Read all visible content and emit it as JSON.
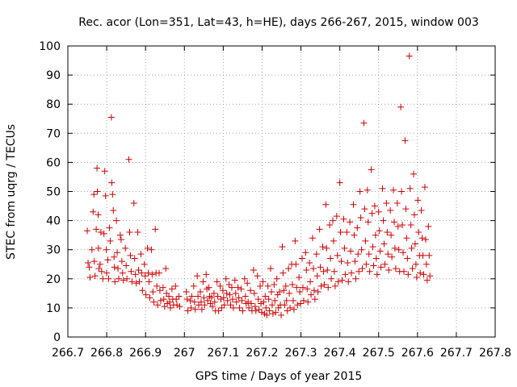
{
  "chart_data": {
    "type": "scatter",
    "title": "Rec. acor (Lon=351, Lat=43, h=HE), days 266-267, 2015, window 003",
    "xlabel": "GPS time / Days of year 2015",
    "ylabel": "STEC from uqrg / TECUs",
    "xlim": [
      266.7,
      267.8
    ],
    "ylim": [
      0,
      100
    ],
    "xticks": [
      266.7,
      266.8,
      266.9,
      267.0,
      267.1,
      267.2,
      267.3,
      267.4,
      267.5,
      267.6,
      267.7,
      267.8
    ],
    "xtick_labels": [
      "266.7",
      "266.8",
      "266.9",
      "267",
      "267.1",
      "267.2",
      "267.3",
      "267.4",
      "267.5",
      "267.6",
      "267.7",
      "267.8"
    ],
    "yticks": [
      0,
      10,
      20,
      30,
      40,
      50,
      60,
      70,
      80,
      90,
      100
    ],
    "ytick_labels": [
      "0",
      "10",
      "20",
      "30",
      "40",
      "50",
      "60",
      "70",
      "80",
      "90",
      "100"
    ],
    "grid": true,
    "marker": "+",
    "color": "#cc0000",
    "points": [
      [
        266.75,
        36.5
      ],
      [
        266.752,
        25.5
      ],
      [
        266.755,
        24.0
      ],
      [
        266.757,
        20.5
      ],
      [
        266.762,
        30.0
      ],
      [
        266.765,
        43.0
      ],
      [
        266.767,
        49.0
      ],
      [
        266.768,
        26.0
      ],
      [
        266.77,
        21.0
      ],
      [
        266.773,
        37.0
      ],
      [
        266.775,
        58.0
      ],
      [
        266.776,
        50.0
      ],
      [
        266.778,
        42.0
      ],
      [
        266.779,
        30.5
      ],
      [
        266.78,
        23.5
      ],
      [
        266.783,
        25.0
      ],
      [
        266.785,
        36.0
      ],
      [
        266.787,
        22.5
      ],
      [
        266.79,
        20.0
      ],
      [
        266.793,
        35.5
      ],
      [
        266.795,
        57.0
      ],
      [
        266.797,
        48.5
      ],
      [
        266.799,
        30.0
      ],
      [
        266.8,
        22.0
      ],
      [
        266.803,
        26.5
      ],
      [
        266.805,
        20.0
      ],
      [
        266.807,
        37.5
      ],
      [
        266.809,
        33.0
      ],
      [
        266.812,
        75.5
      ],
      [
        266.813,
        53.0
      ],
      [
        266.815,
        49.0
      ],
      [
        266.817,
        43.5
      ],
      [
        266.819,
        27.5
      ],
      [
        266.82,
        24.0
      ],
      [
        266.821,
        19.0
      ],
      [
        266.825,
        40.0
      ],
      [
        266.827,
        29.0
      ],
      [
        266.829,
        23.5
      ],
      [
        266.831,
        20.0
      ],
      [
        266.835,
        35.0
      ],
      [
        266.837,
        33.5
      ],
      [
        266.839,
        26.0
      ],
      [
        266.841,
        22.0
      ],
      [
        266.843,
        19.5
      ],
      [
        266.848,
        30.5
      ],
      [
        266.85,
        24.5
      ],
      [
        266.852,
        20.0
      ],
      [
        266.857,
        61.0
      ],
      [
        266.859,
        36.0
      ],
      [
        266.861,
        28.0
      ],
      [
        266.863,
        22.5
      ],
      [
        266.865,
        19.0
      ],
      [
        266.87,
        46.0
      ],
      [
        266.872,
        27.0
      ],
      [
        266.874,
        21.5
      ],
      [
        266.876,
        18.5
      ],
      [
        266.88,
        36.0
      ],
      [
        266.882,
        23.0
      ],
      [
        266.884,
        19.0
      ],
      [
        266.888,
        28.5
      ],
      [
        266.89,
        22.0
      ],
      [
        266.892,
        16.0
      ],
      [
        266.897,
        25.0
      ],
      [
        266.899,
        21.0
      ],
      [
        266.901,
        14.5
      ],
      [
        266.905,
        30.5
      ],
      [
        266.907,
        22.0
      ],
      [
        266.909,
        19.0
      ],
      [
        266.911,
        13.5
      ],
      [
        266.915,
        30.0
      ],
      [
        266.917,
        21.5
      ],
      [
        266.919,
        15.5
      ],
      [
        266.921,
        12.0
      ],
      [
        266.925,
        37.0
      ],
      [
        266.927,
        22.0
      ],
      [
        266.929,
        17.5
      ],
      [
        266.931,
        11.0
      ],
      [
        266.935,
        22.0
      ],
      [
        266.937,
        16.0
      ],
      [
        266.939,
        12.5
      ],
      [
        266.945,
        17.0
      ],
      [
        266.947,
        13.0
      ],
      [
        266.949,
        10.5
      ],
      [
        266.952,
        23.5
      ],
      [
        266.954,
        15.0
      ],
      [
        266.956,
        11.5
      ],
      [
        266.96,
        14.0
      ],
      [
        266.962,
        12.0
      ],
      [
        266.964,
        10.0
      ],
      [
        266.968,
        16.5
      ],
      [
        266.97,
        13.0
      ],
      [
        266.972,
        11.0
      ],
      [
        266.977,
        17.5
      ],
      [
        266.979,
        13.0
      ],
      [
        266.981,
        11.0
      ],
      [
        266.986,
        14.0
      ],
      [
        266.988,
        10.5
      ],
      [
        267.005,
        15.5
      ],
      [
        267.007,
        13.0
      ],
      [
        267.009,
        9.0
      ],
      [
        267.015,
        12.5
      ],
      [
        267.017,
        10.0
      ],
      [
        267.019,
        14.0
      ],
      [
        267.024,
        17.5
      ],
      [
        267.026,
        12.0
      ],
      [
        267.028,
        9.5
      ],
      [
        267.033,
        21.0
      ],
      [
        267.035,
        14.0
      ],
      [
        267.037,
        11.0
      ],
      [
        267.041,
        15.5
      ],
      [
        267.043,
        12.0
      ],
      [
        267.045,
        9.5
      ],
      [
        267.048,
        19.0
      ],
      [
        267.05,
        13.5
      ],
      [
        267.052,
        11.0
      ],
      [
        267.056,
        21.5
      ],
      [
        267.058,
        16.5
      ],
      [
        267.06,
        12.5
      ],
      [
        267.063,
        17.0
      ],
      [
        267.065,
        14.0
      ],
      [
        267.067,
        11.5
      ],
      [
        267.07,
        13.5
      ],
      [
        267.072,
        10.5
      ],
      [
        267.076,
        15.0
      ],
      [
        267.078,
        12.0
      ],
      [
        267.08,
        9.0
      ],
      [
        267.084,
        19.0
      ],
      [
        267.086,
        14.0
      ],
      [
        267.088,
        9.0
      ],
      [
        267.092,
        17.5
      ],
      [
        267.094,
        13.0
      ],
      [
        267.096,
        10.0
      ],
      [
        267.099,
        16.0
      ],
      [
        267.101,
        13.5
      ],
      [
        267.103,
        11.0
      ],
      [
        267.107,
        20.0
      ],
      [
        267.109,
        15.0
      ],
      [
        267.111,
        12.5
      ],
      [
        267.115,
        18.0
      ],
      [
        267.117,
        14.5
      ],
      [
        267.119,
        11.0
      ],
      [
        267.122,
        17.0
      ],
      [
        267.124,
        13.0
      ],
      [
        267.126,
        10.0
      ],
      [
        267.13,
        19.5
      ],
      [
        267.132,
        15.0
      ],
      [
        267.134,
        12.0
      ],
      [
        267.138,
        17.0
      ],
      [
        267.14,
        13.5
      ],
      [
        267.142,
        10.0
      ],
      [
        267.146,
        16.5
      ],
      [
        267.148,
        12.5
      ],
      [
        267.15,
        9.0
      ],
      [
        267.155,
        20.0
      ],
      [
        267.157,
        14.0
      ],
      [
        267.159,
        11.5
      ],
      [
        267.162,
        18.5
      ],
      [
        267.164,
        12.0
      ],
      [
        267.166,
        10.0
      ],
      [
        267.17,
        16.0
      ],
      [
        267.172,
        11.5
      ],
      [
        267.174,
        9.0
      ],
      [
        267.178,
        23.0
      ],
      [
        267.18,
        15.0
      ],
      [
        267.182,
        10.5
      ],
      [
        267.184,
        9.0
      ],
      [
        267.188,
        21.0
      ],
      [
        267.19,
        13.0
      ],
      [
        267.192,
        9.5
      ],
      [
        267.195,
        17.5
      ],
      [
        267.197,
        11.5
      ],
      [
        267.199,
        8.5
      ],
      [
        267.202,
        19.0
      ],
      [
        267.204,
        12.0
      ],
      [
        267.206,
        8.0
      ],
      [
        267.208,
        14.0
      ],
      [
        267.21,
        10.0
      ],
      [
        267.212,
        7.5
      ],
      [
        267.215,
        17.5
      ],
      [
        267.217,
        13.0
      ],
      [
        267.219,
        9.0
      ],
      [
        267.222,
        23.5
      ],
      [
        267.224,
        15.5
      ],
      [
        267.226,
        11.0
      ],
      [
        267.228,
        8.0
      ],
      [
        267.231,
        18.0
      ],
      [
        267.233,
        12.5
      ],
      [
        267.235,
        8.5
      ],
      [
        267.238,
        20.0
      ],
      [
        267.24,
        14.5
      ],
      [
        267.242,
        10.0
      ],
      [
        267.245,
        15.5
      ],
      [
        267.247,
        11.0
      ],
      [
        267.249,
        7.5
      ],
      [
        267.252,
        31.0
      ],
      [
        267.254,
        22.0
      ],
      [
        267.256,
        16.0
      ],
      [
        267.258,
        11.0
      ],
      [
        267.261,
        17.5
      ],
      [
        267.263,
        12.5
      ],
      [
        267.265,
        9.0
      ],
      [
        267.268,
        23.5
      ],
      [
        267.27,
        15.0
      ],
      [
        267.272,
        10.0
      ],
      [
        267.276,
        25.0
      ],
      [
        267.278,
        18.0
      ],
      [
        267.28,
        12.5
      ],
      [
        267.282,
        9.5
      ],
      [
        267.285,
        33.0
      ],
      [
        267.287,
        25.0
      ],
      [
        267.289,
        17.0
      ],
      [
        267.291,
        11.0
      ],
      [
        267.295,
        20.5
      ],
      [
        267.297,
        15.5
      ],
      [
        267.299,
        11.5
      ],
      [
        267.303,
        27.0
      ],
      [
        267.305,
        17.0
      ],
      [
        267.307,
        12.5
      ],
      [
        267.312,
        29.0
      ],
      [
        267.314,
        23.0
      ],
      [
        267.316,
        16.5
      ],
      [
        267.318,
        12.0
      ],
      [
        267.322,
        25.5
      ],
      [
        267.324,
        19.0
      ],
      [
        267.326,
        14.5
      ],
      [
        267.33,
        34.0
      ],
      [
        267.332,
        23.5
      ],
      [
        267.334,
        16.0
      ],
      [
        267.336,
        13.0
      ],
      [
        267.34,
        28.5
      ],
      [
        267.342,
        21.0
      ],
      [
        267.344,
        15.5
      ],
      [
        267.348,
        37.0
      ],
      [
        267.35,
        24.0
      ],
      [
        267.352,
        17.5
      ],
      [
        267.356,
        31.0
      ],
      [
        267.358,
        22.5
      ],
      [
        267.36,
        18.0
      ],
      [
        267.364,
        45.5
      ],
      [
        267.366,
        30.5
      ],
      [
        267.368,
        23.0
      ],
      [
        267.37,
        17.0
      ],
      [
        267.374,
        38.5
      ],
      [
        267.376,
        27.0
      ],
      [
        267.378,
        20.0
      ],
      [
        267.382,
        40.0
      ],
      [
        267.384,
        33.0
      ],
      [
        267.386,
        22.5
      ],
      [
        267.388,
        17.5
      ],
      [
        267.392,
        41.5
      ],
      [
        267.394,
        28.0
      ],
      [
        267.396,
        19.0
      ],
      [
        267.4,
        53.0
      ],
      [
        267.402,
        36.0
      ],
      [
        267.404,
        26.0
      ],
      [
        267.406,
        19.5
      ],
      [
        267.41,
        40.5
      ],
      [
        267.412,
        30.5
      ],
      [
        267.414,
        21.5
      ],
      [
        267.418,
        36.0
      ],
      [
        267.42,
        25.5
      ],
      [
        267.422,
        19.0
      ],
      [
        267.426,
        39.5
      ],
      [
        267.428,
        29.5
      ],
      [
        267.43,
        22.0
      ],
      [
        267.435,
        45.5
      ],
      [
        267.437,
        35.0
      ],
      [
        267.439,
        26.0
      ],
      [
        267.441,
        20.0
      ],
      [
        267.445,
        37.5
      ],
      [
        267.447,
        28.5
      ],
      [
        267.449,
        22.5
      ],
      [
        267.452,
        50.0
      ],
      [
        267.454,
        41.0
      ],
      [
        267.456,
        30.0
      ],
      [
        267.458,
        23.5
      ],
      [
        267.462,
        73.5
      ],
      [
        267.464,
        44.0
      ],
      [
        267.466,
        33.0
      ],
      [
        267.468,
        25.0
      ],
      [
        267.471,
        50.5
      ],
      [
        267.473,
        39.5
      ],
      [
        267.475,
        28.5
      ],
      [
        267.477,
        22.5
      ],
      [
        267.481,
        57.5
      ],
      [
        267.483,
        42.5
      ],
      [
        267.485,
        31.0
      ],
      [
        267.487,
        24.5
      ],
      [
        267.49,
        45.0
      ],
      [
        267.492,
        35.0
      ],
      [
        267.494,
        27.0
      ],
      [
        267.496,
        21.5
      ],
      [
        267.5,
        43.0
      ],
      [
        267.502,
        36.5
      ],
      [
        267.504,
        29.5
      ],
      [
        267.506,
        24.0
      ],
      [
        267.51,
        51.0
      ],
      [
        267.512,
        40.0
      ],
      [
        267.514,
        32.0
      ],
      [
        267.516,
        25.0
      ],
      [
        267.52,
        46.0
      ],
      [
        267.522,
        36.0
      ],
      [
        267.524,
        28.5
      ],
      [
        267.526,
        23.0
      ],
      [
        267.53,
        43.5
      ],
      [
        267.532,
        35.0
      ],
      [
        267.534,
        27.5
      ],
      [
        267.538,
        50.5
      ],
      [
        267.54,
        39.5
      ],
      [
        267.542,
        30.5
      ],
      [
        267.544,
        23.5
      ],
      [
        267.548,
        46.0
      ],
      [
        267.55,
        38.0
      ],
      [
        267.552,
        30.0
      ],
      [
        267.554,
        22.5
      ],
      [
        267.557,
        79.0
      ],
      [
        267.559,
        50.0
      ],
      [
        267.561,
        38.5
      ],
      [
        267.563,
        29.0
      ],
      [
        267.565,
        22.5
      ],
      [
        267.568,
        67.5
      ],
      [
        267.57,
        44.0
      ],
      [
        267.572,
        34.0
      ],
      [
        267.574,
        27.0
      ],
      [
        267.576,
        21.5
      ],
      [
        267.579,
        96.5
      ],
      [
        267.581,
        51.0
      ],
      [
        267.583,
        38.5
      ],
      [
        267.585,
        30.5
      ],
      [
        267.587,
        23.5
      ],
      [
        267.59,
        56.0
      ],
      [
        267.592,
        42.0
      ],
      [
        267.594,
        32.0
      ],
      [
        267.596,
        25.0
      ],
      [
        267.598,
        20.5
      ],
      [
        267.601,
        47.0
      ],
      [
        267.603,
        36.0
      ],
      [
        267.605,
        28.0
      ],
      [
        267.607,
        22.0
      ],
      [
        267.61,
        43.5
      ],
      [
        267.612,
        34.0
      ],
      [
        267.614,
        28.0
      ],
      [
        267.616,
        21.5
      ],
      [
        267.619,
        51.5
      ],
      [
        267.621,
        33.5
      ],
      [
        267.623,
        25.0
      ],
      [
        267.625,
        19.5
      ],
      [
        267.628,
        38.0
      ],
      [
        267.63,
        28.0
      ],
      [
        267.632,
        21.0
      ]
    ]
  }
}
